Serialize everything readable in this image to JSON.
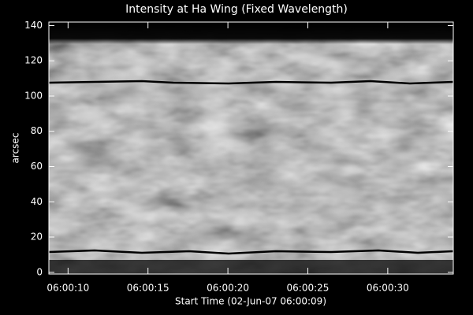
{
  "chart_data": {
    "type": "image",
    "title": "Intensity at Ha Wing (Fixed Wavelength)",
    "xlabel": "Start Time (02-Jun-07 06:00:09)",
    "ylabel": "arcsec",
    "xlim": [
      8.8,
      34.1
    ],
    "xticks": [
      {
        "value": 10,
        "label": "06:00:10"
      },
      {
        "value": 15,
        "label": "06:00:15"
      },
      {
        "value": 20,
        "label": "06:00:20"
      },
      {
        "value": 25,
        "label": "06:00:25"
      },
      {
        "value": 30,
        "label": "06:00:30"
      }
    ],
    "ylim": [
      -1,
      142
    ],
    "yticks": [
      0,
      20,
      40,
      60,
      80,
      100,
      120,
      140
    ]
  }
}
